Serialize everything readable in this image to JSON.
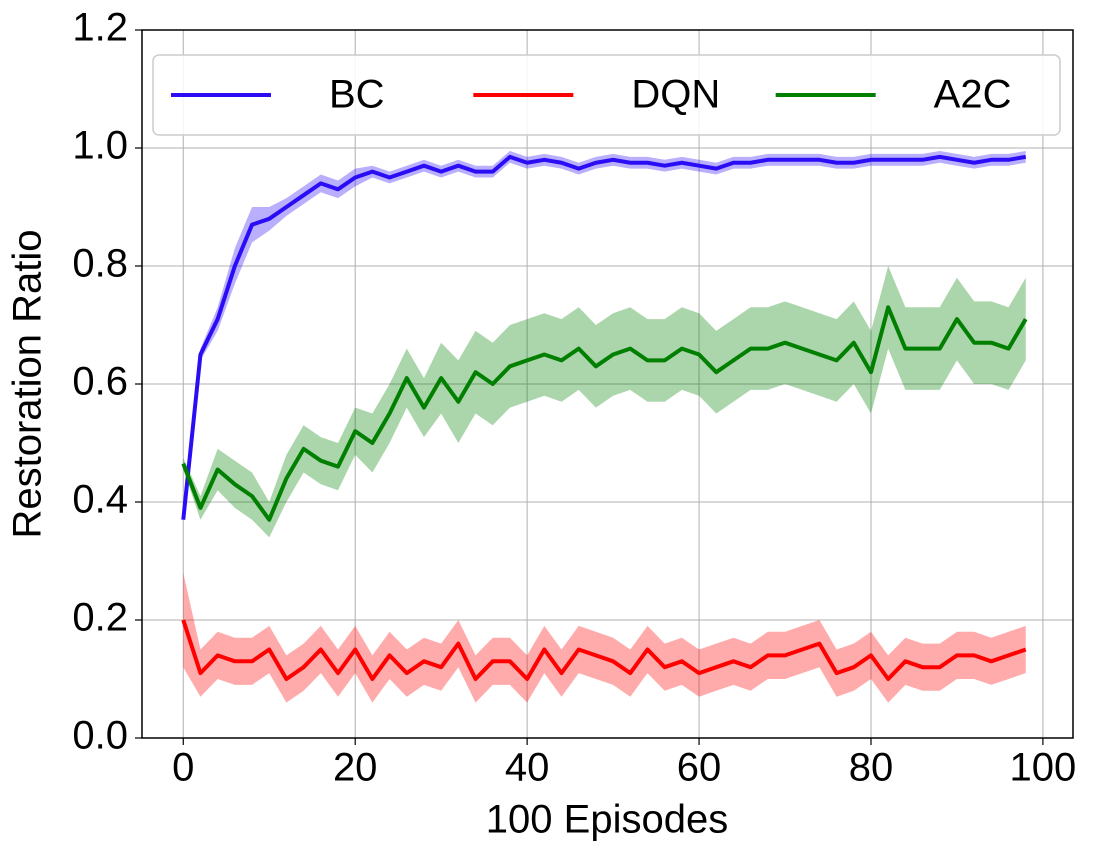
{
  "chart_data": {
    "type": "line",
    "xlabel": "100 Episodes",
    "ylabel": "Restoration Ratio",
    "x": [
      0,
      2,
      4,
      6,
      8,
      10,
      12,
      14,
      16,
      18,
      20,
      22,
      24,
      26,
      28,
      30,
      32,
      34,
      36,
      38,
      40,
      42,
      44,
      46,
      48,
      50,
      52,
      54,
      56,
      58,
      60,
      62,
      64,
      66,
      68,
      70,
      72,
      74,
      76,
      78,
      80,
      82,
      84,
      86,
      88,
      90,
      92,
      94,
      96,
      98
    ],
    "series": [
      {
        "name": "BC",
        "color": "#2a0df5",
        "values": [
          0.37,
          0.65,
          0.71,
          0.8,
          0.87,
          0.88,
          0.9,
          0.92,
          0.94,
          0.93,
          0.95,
          0.96,
          0.95,
          0.96,
          0.97,
          0.96,
          0.97,
          0.96,
          0.96,
          0.985,
          0.975,
          0.98,
          0.975,
          0.965,
          0.975,
          0.98,
          0.975,
          0.975,
          0.97,
          0.975,
          0.97,
          0.965,
          0.975,
          0.975,
          0.98,
          0.98,
          0.98,
          0.98,
          0.975,
          0.975,
          0.98,
          0.98,
          0.98,
          0.98,
          0.985,
          0.98,
          0.975,
          0.98,
          0.98,
          0.985
        ],
        "lower": [
          0.37,
          0.64,
          0.69,
          0.77,
          0.84,
          0.86,
          0.885,
          0.905,
          0.925,
          0.915,
          0.935,
          0.95,
          0.94,
          0.95,
          0.96,
          0.95,
          0.96,
          0.95,
          0.95,
          0.975,
          0.965,
          0.97,
          0.965,
          0.955,
          0.965,
          0.97,
          0.965,
          0.965,
          0.96,
          0.965,
          0.96,
          0.955,
          0.965,
          0.965,
          0.97,
          0.97,
          0.97,
          0.97,
          0.965,
          0.965,
          0.97,
          0.97,
          0.97,
          0.97,
          0.975,
          0.97,
          0.965,
          0.97,
          0.97,
          0.975
        ],
        "upper": [
          0.37,
          0.66,
          0.73,
          0.83,
          0.9,
          0.9,
          0.915,
          0.935,
          0.955,
          0.945,
          0.965,
          0.97,
          0.96,
          0.97,
          0.98,
          0.97,
          0.98,
          0.97,
          0.97,
          0.995,
          0.985,
          0.99,
          0.985,
          0.975,
          0.985,
          0.99,
          0.985,
          0.985,
          0.98,
          0.985,
          0.98,
          0.975,
          0.985,
          0.985,
          0.99,
          0.99,
          0.99,
          0.99,
          0.985,
          0.985,
          0.99,
          0.99,
          0.99,
          0.99,
          0.995,
          0.99,
          0.985,
          0.99,
          0.99,
          0.995
        ]
      },
      {
        "name": "DQN",
        "color": "#ff0000",
        "values": [
          0.2,
          0.11,
          0.14,
          0.13,
          0.13,
          0.15,
          0.1,
          0.12,
          0.15,
          0.11,
          0.15,
          0.1,
          0.14,
          0.11,
          0.13,
          0.12,
          0.16,
          0.1,
          0.13,
          0.13,
          0.1,
          0.15,
          0.11,
          0.15,
          0.14,
          0.13,
          0.11,
          0.15,
          0.12,
          0.13,
          0.11,
          0.12,
          0.13,
          0.12,
          0.14,
          0.14,
          0.15,
          0.16,
          0.11,
          0.12,
          0.14,
          0.1,
          0.13,
          0.12,
          0.12,
          0.14,
          0.14,
          0.13,
          0.14,
          0.15
        ],
        "lower": [
          0.12,
          0.07,
          0.1,
          0.09,
          0.09,
          0.11,
          0.06,
          0.08,
          0.11,
          0.07,
          0.11,
          0.06,
          0.1,
          0.07,
          0.09,
          0.08,
          0.12,
          0.06,
          0.09,
          0.09,
          0.06,
          0.11,
          0.07,
          0.11,
          0.1,
          0.09,
          0.07,
          0.11,
          0.08,
          0.09,
          0.07,
          0.08,
          0.09,
          0.08,
          0.1,
          0.1,
          0.11,
          0.12,
          0.07,
          0.08,
          0.1,
          0.06,
          0.09,
          0.08,
          0.08,
          0.1,
          0.1,
          0.09,
          0.1,
          0.11
        ],
        "upper": [
          0.28,
          0.15,
          0.18,
          0.17,
          0.17,
          0.19,
          0.14,
          0.16,
          0.19,
          0.15,
          0.19,
          0.14,
          0.18,
          0.15,
          0.17,
          0.16,
          0.2,
          0.14,
          0.17,
          0.17,
          0.14,
          0.19,
          0.15,
          0.19,
          0.18,
          0.17,
          0.15,
          0.19,
          0.16,
          0.17,
          0.15,
          0.16,
          0.17,
          0.16,
          0.18,
          0.18,
          0.19,
          0.2,
          0.15,
          0.16,
          0.18,
          0.14,
          0.17,
          0.16,
          0.16,
          0.18,
          0.18,
          0.17,
          0.18,
          0.19
        ]
      },
      {
        "name": "A2C",
        "color": "#007f00",
        "values": [
          0.465,
          0.39,
          0.455,
          0.43,
          0.41,
          0.37,
          0.44,
          0.49,
          0.47,
          0.46,
          0.52,
          0.5,
          0.55,
          0.61,
          0.56,
          0.61,
          0.57,
          0.62,
          0.6,
          0.63,
          0.64,
          0.65,
          0.64,
          0.66,
          0.63,
          0.65,
          0.66,
          0.64,
          0.64,
          0.66,
          0.65,
          0.62,
          0.64,
          0.66,
          0.66,
          0.67,
          0.66,
          0.65,
          0.64,
          0.67,
          0.62,
          0.73,
          0.66,
          0.66,
          0.66,
          0.71,
          0.67,
          0.67,
          0.66,
          0.71
        ],
        "lower": [
          0.455,
          0.37,
          0.42,
          0.39,
          0.37,
          0.34,
          0.4,
          0.45,
          0.43,
          0.42,
          0.48,
          0.45,
          0.5,
          0.56,
          0.51,
          0.55,
          0.5,
          0.55,
          0.53,
          0.56,
          0.57,
          0.58,
          0.57,
          0.59,
          0.56,
          0.58,
          0.59,
          0.57,
          0.57,
          0.59,
          0.58,
          0.55,
          0.57,
          0.59,
          0.59,
          0.6,
          0.59,
          0.58,
          0.57,
          0.6,
          0.55,
          0.66,
          0.59,
          0.59,
          0.59,
          0.64,
          0.6,
          0.6,
          0.59,
          0.64
        ],
        "upper": [
          0.475,
          0.41,
          0.49,
          0.47,
          0.45,
          0.4,
          0.48,
          0.53,
          0.51,
          0.5,
          0.56,
          0.55,
          0.6,
          0.66,
          0.61,
          0.67,
          0.64,
          0.69,
          0.67,
          0.7,
          0.71,
          0.72,
          0.71,
          0.73,
          0.7,
          0.72,
          0.73,
          0.71,
          0.71,
          0.73,
          0.72,
          0.69,
          0.71,
          0.73,
          0.73,
          0.74,
          0.73,
          0.72,
          0.71,
          0.74,
          0.69,
          0.8,
          0.73,
          0.73,
          0.73,
          0.78,
          0.74,
          0.74,
          0.73,
          0.78
        ]
      }
    ],
    "xlim": [
      -4.8,
      103.5
    ],
    "ylim": [
      0,
      1.2
    ],
    "xticks": [
      0,
      20,
      40,
      60,
      80,
      100
    ],
    "yticks": [
      {
        "value": 0,
        "label": "0.0"
      },
      0.2,
      0.4,
      0.6,
      0.8,
      {
        "value": 1,
        "label": "1.0"
      },
      1.2
    ],
    "grid": true,
    "legend": "upper center"
  }
}
